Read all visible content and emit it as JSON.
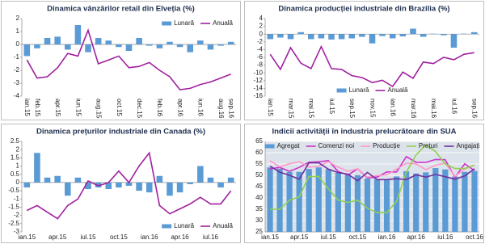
{
  "chart_data": [
    {
      "type": "combo",
      "title": "Dinamica vânzărilor retail din Elveția (%)",
      "categories": [
        "ian.15",
        "feb.15",
        null,
        "apr.15",
        null,
        "iun.15",
        null,
        "aug.15",
        null,
        "oct.15",
        null,
        "dec.15",
        null,
        "feb.16",
        null,
        "apr.16",
        null,
        "iun.16",
        null,
        "aug.16",
        "sep.16"
      ],
      "series": [
        {
          "name": "Lunară",
          "kind": "bar",
          "color": "#5b9bd5",
          "values": [
            -0.9,
            -0.3,
            0.5,
            0.6,
            -0.4,
            1.5,
            -0.6,
            0.5,
            0.3,
            -0.2,
            -0.5,
            0.5,
            -0.1,
            -0.3,
            0.2,
            -0.2,
            -0.6,
            0.3,
            -0.4,
            -0.1,
            0.2
          ]
        },
        {
          "name": "Anuală",
          "kind": "line",
          "color": "#a020a0",
          "values": [
            -1.2,
            -2.6,
            -2.5,
            -1.8,
            -0.7,
            -0.9,
            1.1,
            -1.5,
            -1.2,
            -0.9,
            -1.8,
            -1.7,
            -1.4,
            -2.0,
            -2.5,
            -3.5,
            -3.4,
            -3.1,
            -2.9,
            -2.6,
            -2.3
          ]
        }
      ],
      "ylim": [
        -4,
        2
      ],
      "yticks": [
        -4,
        -3,
        -2,
        -1,
        0,
        1,
        2
      ],
      "legend": "top-right",
      "grid": false
    },
    {
      "type": "combo",
      "title": "Dinamica producției industriale din Brazilia (%)",
      "categories": [
        "ian.15",
        null,
        "mar.15",
        null,
        "mai.15",
        null,
        "iul.15",
        null,
        "sep.15",
        null,
        "nov.15",
        null,
        "ian.16",
        null,
        "mar.16",
        null,
        "mai.16",
        null,
        "iul.16",
        null,
        "sep.16"
      ],
      "series": [
        {
          "name": "Lunară",
          "kind": "bar",
          "color": "#5b9bd5",
          "values": [
            -1.3,
            -0.9,
            -1.3,
            0.5,
            -1.3,
            -1.1,
            -1.4,
            -1.3,
            -1.1,
            -0.7,
            -2.4,
            -0.5,
            -1.1,
            -0.6,
            1.4,
            -0.7,
            0.1,
            -0.3,
            -3.5,
            0.1,
            0.5
          ]
        },
        {
          "name": "Anuală",
          "kind": "line",
          "color": "#a020a0",
          "values": [
            -5.2,
            -9.1,
            -3.5,
            -7.5,
            -8.9,
            -3.2,
            -8.9,
            -9.1,
            -10.7,
            -11.2,
            -12.5,
            -11.9,
            -13.5,
            -9.8,
            -11.4,
            -7.2,
            -7.6,
            -6.0,
            -6.6,
            -5.2,
            -4.8
          ]
        }
      ],
      "ylim": [
        -16,
        4
      ],
      "yticks": [
        -16,
        -14,
        -12,
        -10,
        -8,
        -6,
        -4,
        -2,
        0,
        2,
        4
      ],
      "legend": "bottom-center",
      "grid": false
    },
    {
      "type": "combo",
      "title": "Dinamica prețurilor industriale din Canada (%)",
      "categories": [
        "ian.15",
        null,
        null,
        "apr.15",
        null,
        null,
        "iul.15",
        null,
        null,
        "oct.15",
        null,
        null,
        "ian.16",
        null,
        null,
        "apr.16",
        null,
        null,
        "iul.16",
        null,
        null
      ],
      "series": [
        {
          "name": "Lunară",
          "kind": "bar",
          "color": "#5b9bd5",
          "values": [
            -0.3,
            1.8,
            0.3,
            0.4,
            -0.8,
            0.3,
            -0.4,
            -0.3,
            -0.4,
            -0.3,
            -0.2,
            -0.5,
            -0.6,
            0.4,
            -0.8,
            -0.6,
            -0.1,
            1.0,
            0.3,
            -0.3,
            0.3
          ]
        },
        {
          "name": "Anuală",
          "kind": "line",
          "color": "#a020a0",
          "values": [
            -1.7,
            -1.4,
            -1.8,
            -2.2,
            -1.4,
            -1.0,
            0.1,
            -0.2,
            0.0,
            0.7,
            0.0,
            1.0,
            1.8,
            -1.4,
            -1.9,
            -1.6,
            -1.3,
            -0.9,
            -1.3,
            -1.3,
            -0.5
          ]
        }
      ],
      "ylim": [
        -3,
        2.5
      ],
      "yticks": [
        -3,
        -2.5,
        -2,
        -1.5,
        -1,
        -0.5,
        0,
        0.5,
        1,
        1.5,
        2,
        2.5
      ],
      "legend": "bottom-right",
      "grid": false
    },
    {
      "type": "combo",
      "title": "Indicii activității în industria prelucrătoare din SUA",
      "categories": [
        "ian.15",
        null,
        null,
        "apr.15",
        null,
        null,
        "iul.15",
        null,
        null,
        "oct.15",
        null,
        null,
        "ian.16",
        null,
        null,
        "apr.16",
        null,
        null,
        "iul.16",
        null,
        null,
        "oct.16"
      ],
      "series": [
        {
          "name": "Agregat",
          "kind": "bar",
          "color": "#5b9bd5",
          "values": [
            53.5,
            52.9,
            51.5,
            51.5,
            52.8,
            53.5,
            52.7,
            51.1,
            50.2,
            50.1,
            48.6,
            48.2,
            48.2,
            49.5,
            51.8,
            50.8,
            51.3,
            53.2,
            52.6,
            49.4,
            51.5,
            51.9
          ]
        },
        {
          "name": "Comenzi noi",
          "kind": "line",
          "color": "#cc33cc",
          "values": [
            52.9,
            53.5,
            51.8,
            53.5,
            55.8,
            56.0,
            56.5,
            51.7,
            50.1,
            52.9,
            48.9,
            49.2,
            51.5,
            51.5,
            58.3,
            55.8,
            55.7,
            57.0,
            56.9,
            49.1,
            55.1,
            52.1
          ]
        },
        {
          "name": "Producție",
          "kind": "line",
          "color": "#ff99cc",
          "values": [
            56.5,
            53.7,
            55.1,
            56.0,
            53.6,
            54.0,
            56.0,
            53.6,
            51.8,
            52.9,
            49.2,
            49.9,
            50.2,
            52.8,
            55.3,
            55.1,
            52.5,
            54.5,
            55.4,
            49.6,
            52.8,
            54.6
          ]
        },
        {
          "name": "Prețuri",
          "kind": "line",
          "color": "#92d050",
          "values": [
            35.0,
            35.0,
            39.0,
            40.5,
            49.5,
            49.5,
            44.0,
            39.0,
            38.0,
            39.0,
            35.5,
            33.5,
            33.5,
            38.5,
            51.5,
            59.0,
            63.5,
            60.5,
            55.0,
            53.0,
            53.0,
            54.5
          ]
        },
        {
          "name": "Angajați",
          "kind": "line",
          "color": "#7030a0",
          "values": [
            54.1,
            51.4,
            50.0,
            48.3,
            55.5,
            55.5,
            52.7,
            51.2,
            50.5,
            47.6,
            51.3,
            48.1,
            48.1,
            48.5,
            48.1,
            50.2,
            49.2,
            50.4,
            49.4,
            48.3,
            49.7,
            52.9
          ]
        }
      ],
      "ylim": [
        25,
        65
      ],
      "yticks": [
        25,
        30,
        35,
        40,
        45,
        50,
        55,
        60,
        65
      ],
      "legend": "top",
      "grid": true
    }
  ]
}
